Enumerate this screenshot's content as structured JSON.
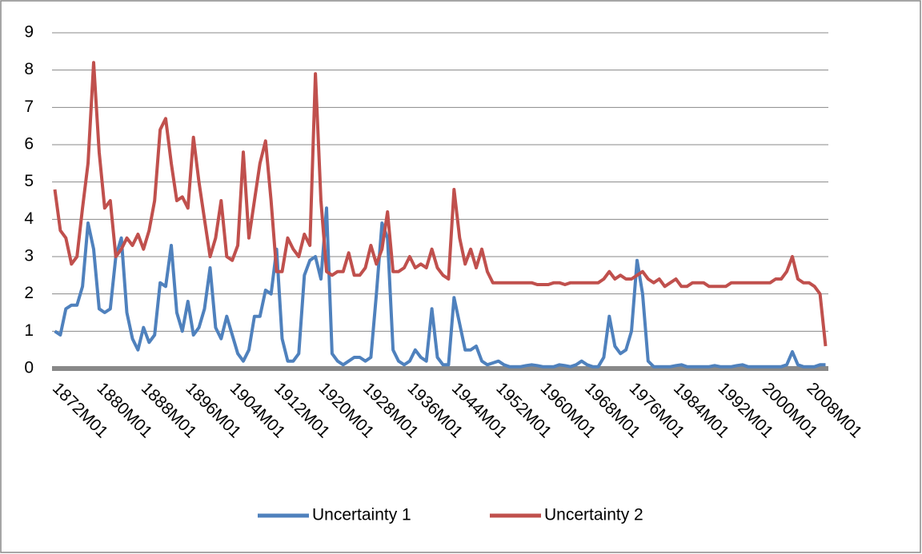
{
  "chart_data": {
    "type": "line",
    "categories": [
      "1872M01",
      null,
      null,
      null,
      null,
      null,
      null,
      null,
      "1880M01",
      null,
      null,
      null,
      null,
      null,
      null,
      null,
      "1888M01",
      null,
      null,
      null,
      null,
      null,
      null,
      null,
      "1896M01",
      null,
      null,
      null,
      null,
      null,
      null,
      null,
      "1904M01",
      null,
      null,
      null,
      null,
      null,
      null,
      null,
      "1912M01",
      null,
      null,
      null,
      null,
      null,
      null,
      null,
      "1920M01",
      null,
      null,
      null,
      null,
      null,
      null,
      null,
      "1928M01",
      null,
      null,
      null,
      null,
      null,
      null,
      null,
      "1936M01",
      null,
      null,
      null,
      null,
      null,
      null,
      null,
      "1944M01",
      null,
      null,
      null,
      null,
      null,
      null,
      null,
      "1952M01",
      null,
      null,
      null,
      null,
      null,
      null,
      null,
      "1960M01",
      null,
      null,
      null,
      null,
      null,
      null,
      null,
      "1968M01",
      null,
      null,
      null,
      null,
      null,
      null,
      null,
      "1976M01",
      null,
      null,
      null,
      null,
      null,
      null,
      null,
      "1984M01",
      null,
      null,
      null,
      null,
      null,
      null,
      null,
      "1992M01",
      null,
      null,
      null,
      null,
      null,
      null,
      null,
      "2000M01",
      null,
      null,
      null,
      null,
      null,
      null,
      null,
      "2008M01",
      null,
      null,
      null
    ],
    "series": [
      {
        "name": "Uncertainty 1",
        "color": "#4f81bd",
        "values": [
          1.0,
          0.9,
          1.6,
          1.7,
          1.7,
          2.2,
          3.9,
          3.2,
          1.6,
          1.5,
          1.6,
          3.0,
          3.5,
          1.5,
          0.8,
          0.5,
          1.1,
          0.7,
          0.9,
          2.3,
          2.2,
          3.3,
          1.5,
          1.0,
          1.8,
          0.9,
          1.1,
          1.6,
          2.7,
          1.1,
          0.8,
          1.4,
          0.9,
          0.4,
          0.2,
          0.5,
          1.4,
          1.4,
          2.1,
          2.0,
          3.2,
          0.8,
          0.2,
          0.2,
          0.4,
          2.5,
          2.9,
          3.0,
          2.4,
          4.3,
          0.4,
          0.2,
          0.1,
          0.2,
          0.3,
          0.3,
          0.2,
          0.3,
          2.0,
          3.9,
          3.5,
          0.5,
          0.2,
          0.1,
          0.2,
          0.5,
          0.3,
          0.2,
          1.6,
          0.3,
          0.1,
          0.1,
          1.9,
          1.2,
          0.5,
          0.5,
          0.6,
          0.2,
          0.1,
          0.15,
          0.2,
          0.1,
          0.05,
          0.05,
          0.05,
          0.08,
          0.1,
          0.08,
          0.05,
          0.05,
          0.05,
          0.1,
          0.08,
          0.05,
          0.1,
          0.2,
          0.1,
          0.05,
          0.05,
          0.3,
          1.4,
          0.6,
          0.4,
          0.5,
          1.0,
          2.9,
          2.0,
          0.2,
          0.05,
          0.05,
          0.05,
          0.05,
          0.08,
          0.1,
          0.05,
          0.05,
          0.05,
          0.05,
          0.05,
          0.08,
          0.05,
          0.05,
          0.05,
          0.08,
          0.1,
          0.05,
          0.05,
          0.05,
          0.05,
          0.05,
          0.05,
          0.05,
          0.1,
          0.45,
          0.1,
          0.05,
          0.05,
          0.05,
          0.1,
          0.1
        ]
      },
      {
        "name": "Uncertainty 2",
        "color": "#c0504d",
        "values": [
          4.8,
          3.7,
          3.5,
          2.8,
          3.0,
          4.3,
          5.5,
          8.2,
          5.8,
          4.3,
          4.5,
          3.0,
          3.2,
          3.5,
          3.3,
          3.6,
          3.2,
          3.7,
          4.5,
          6.4,
          6.7,
          5.5,
          4.5,
          4.6,
          4.3,
          6.2,
          5.0,
          4.0,
          3.0,
          3.5,
          4.5,
          3.0,
          2.9,
          3.3,
          5.8,
          3.5,
          4.5,
          5.5,
          6.1,
          4.5,
          2.6,
          2.6,
          3.5,
          3.2,
          3.0,
          3.6,
          3.3,
          7.9,
          4.5,
          2.6,
          2.5,
          2.6,
          2.6,
          3.1,
          2.5,
          2.5,
          2.7,
          3.3,
          2.8,
          3.2,
          4.2,
          2.6,
          2.6,
          2.7,
          3.0,
          2.7,
          2.8,
          2.7,
          3.2,
          2.7,
          2.5,
          2.4,
          4.8,
          3.5,
          2.8,
          3.2,
          2.7,
          3.2,
          2.6,
          2.3,
          2.3,
          2.3,
          2.3,
          2.3,
          2.3,
          2.3,
          2.3,
          2.25,
          2.25,
          2.25,
          2.3,
          2.3,
          2.25,
          2.3,
          2.3,
          2.3,
          2.3,
          2.3,
          2.3,
          2.4,
          2.6,
          2.4,
          2.5,
          2.4,
          2.4,
          2.5,
          2.6,
          2.4,
          2.3,
          2.4,
          2.2,
          2.3,
          2.4,
          2.2,
          2.2,
          2.3,
          2.3,
          2.3,
          2.2,
          2.2,
          2.2,
          2.2,
          2.3,
          2.3,
          2.3,
          2.3,
          2.3,
          2.3,
          2.3,
          2.3,
          2.4,
          2.4,
          2.6,
          3.0,
          2.4,
          2.3,
          2.3,
          2.2,
          2.0,
          0.6
        ]
      }
    ],
    "ylim": [
      0,
      9
    ],
    "yticks": [
      0,
      1,
      2,
      3,
      4,
      5,
      6,
      7,
      8,
      9
    ],
    "grid": true,
    "legend": "bottom"
  }
}
